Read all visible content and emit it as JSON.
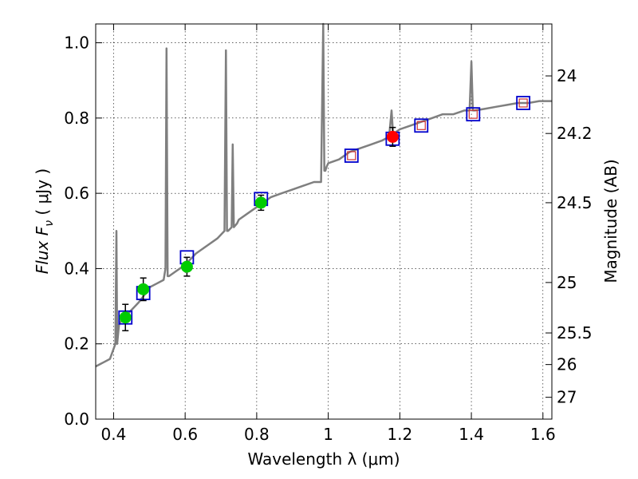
{
  "chart_data": {
    "type": "line",
    "xlabel": "Wavelength  λ (μm)",
    "ylabel": "Flux  F",
    "ylabel_sub": "ν",
    "ylabel_units": " ( μJy )",
    "ylabel_right": "Magnitude (AB)",
    "xlim": [
      0.35,
      1.625
    ],
    "ylim": [
      0.0,
      1.05
    ],
    "grid": true,
    "x_ticks": [
      0.4,
      0.6,
      0.8,
      1.0,
      1.2,
      1.4,
      1.6
    ],
    "x_tick_labels": [
      "0.4",
      "0.6",
      "0.8",
      "1",
      "1.2",
      "1.4",
      "1.6"
    ],
    "y_ticks": [
      0.0,
      0.2,
      0.4,
      0.6,
      0.8,
      1.0
    ],
    "y_tick_labels": [
      "0.0",
      "0.2",
      "0.4",
      "0.6",
      "0.8",
      "1.0"
    ],
    "right_ticks": [
      {
        "label": "24",
        "flux": 0.912
      },
      {
        "label": "24.2",
        "flux": 0.759
      },
      {
        "label": "24.5",
        "flux": 0.575
      },
      {
        "label": "25",
        "flux": 0.363
      },
      {
        "label": "25.5",
        "flux": 0.229
      },
      {
        "label": "26",
        "flux": 0.145
      },
      {
        "label": "27",
        "flux": 0.058
      }
    ],
    "series": [
      {
        "name": "model spectrum",
        "color": "#7f7f7f",
        "x": [
          0.35,
          0.37,
          0.39,
          0.405,
          0.408,
          0.41,
          0.415,
          0.42,
          0.43,
          0.44,
          0.45,
          0.47,
          0.49,
          0.5,
          0.52,
          0.54,
          0.545,
          0.548,
          0.551,
          0.555,
          0.57,
          0.6,
          0.63,
          0.66,
          0.69,
          0.71,
          0.714,
          0.717,
          0.72,
          0.73,
          0.733,
          0.736,
          0.745,
          0.75,
          0.78,
          0.81,
          0.84,
          0.87,
          0.9,
          0.93,
          0.96,
          0.98,
          0.986,
          0.989,
          0.992,
          0.995,
          1.0,
          1.03,
          1.06,
          1.09,
          1.12,
          1.15,
          1.17,
          1.177,
          1.181,
          1.185,
          1.2,
          1.23,
          1.26,
          1.29,
          1.32,
          1.35,
          1.38,
          1.395,
          1.4,
          1.404,
          1.41,
          1.44,
          1.47,
          1.5,
          1.53,
          1.56,
          1.59,
          1.625
        ],
        "y": [
          0.14,
          0.15,
          0.16,
          0.2,
          0.5,
          0.2,
          0.25,
          0.26,
          0.27,
          0.28,
          0.29,
          0.31,
          0.335,
          0.35,
          0.36,
          0.37,
          0.4,
          0.985,
          0.38,
          0.38,
          0.39,
          0.41,
          0.44,
          0.46,
          0.48,
          0.5,
          0.98,
          0.5,
          0.5,
          0.51,
          0.73,
          0.51,
          0.52,
          0.53,
          0.55,
          0.57,
          0.59,
          0.6,
          0.61,
          0.62,
          0.63,
          0.63,
          1.05,
          0.66,
          0.66,
          0.67,
          0.68,
          0.69,
          0.71,
          0.72,
          0.73,
          0.74,
          0.75,
          0.82,
          0.76,
          0.76,
          0.77,
          0.78,
          0.79,
          0.8,
          0.81,
          0.81,
          0.82,
          0.82,
          0.95,
          0.82,
          0.82,
          0.825,
          0.83,
          0.835,
          0.84,
          0.84,
          0.845,
          0.845
        ]
      },
      {
        "name": "model bandpass fluxes",
        "marker": "square",
        "color": "#0000cc",
        "x": [
          0.433,
          0.483,
          0.605,
          0.812,
          1.065,
          1.18,
          1.26,
          1.405,
          1.545
        ],
        "y": [
          0.27,
          0.335,
          0.43,
          0.585,
          0.7,
          0.745,
          0.78,
          0.81,
          0.84
        ]
      },
      {
        "name": "inner model squares",
        "marker": "square",
        "color": "#cc3333",
        "x": [
          1.065,
          1.26,
          1.405,
          1.545
        ],
        "y": [
          0.7,
          0.78,
          0.81,
          0.84
        ]
      },
      {
        "name": "optical photometry",
        "marker": "circle",
        "color": "#00cc00",
        "x": [
          0.433,
          0.483,
          0.605,
          0.812
        ],
        "y": [
          0.27,
          0.345,
          0.405,
          0.575
        ],
        "yerr": [
          0.035,
          0.03,
          0.025,
          0.02
        ]
      },
      {
        "name": "near-IR photometry",
        "marker": "circle",
        "color": "#ff0000",
        "x": [
          1.18
        ],
        "y": [
          0.75
        ],
        "yerr": [
          0.025
        ]
      }
    ]
  }
}
